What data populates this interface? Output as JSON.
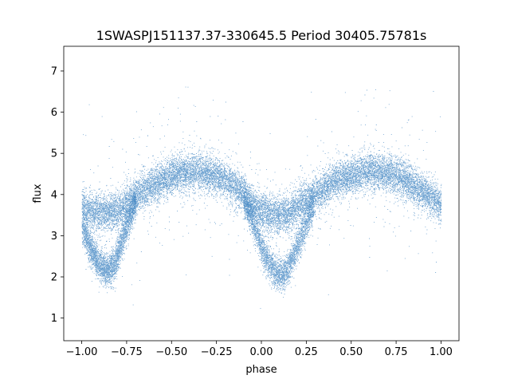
{
  "chart_data": {
    "type": "scatter",
    "title": "1SWASPJ151137.37-330645.5 Period 30405.75781s",
    "xlabel": "phase",
    "ylabel": "flux",
    "xlim": [
      -1.1,
      1.1
    ],
    "ylim": [
      0.45,
      7.6
    ],
    "x_ticks": [
      -1.0,
      -0.75,
      -0.5,
      -0.25,
      0.0,
      0.25,
      0.5,
      0.75,
      1.0
    ],
    "x_tick_labels": [
      "−1.00",
      "−0.75",
      "−0.50",
      "−0.25",
      "0.00",
      "0.25",
      "0.50",
      "0.75",
      "1.00"
    ],
    "y_ticks": [
      1,
      2,
      3,
      4,
      5,
      6,
      7
    ],
    "y_tick_labels": [
      "1",
      "2",
      "3",
      "4",
      "5",
      "6",
      "7"
    ],
    "grid": false,
    "point_color": "#3b82c0",
    "series": [
      {
        "phase_range": [
          -1.0,
          1.0
        ],
        "upper_branch_profile": {
          "x": [
            -1.0,
            -0.95,
            -0.9,
            -0.85,
            -0.8,
            -0.75,
            -0.7,
            -0.65,
            -0.6,
            -0.55,
            -0.5,
            -0.45,
            -0.4,
            -0.35,
            -0.3,
            -0.25,
            -0.2,
            -0.15,
            -0.1,
            -0.05,
            0.0,
            0.05,
            0.1,
            0.15,
            0.2,
            0.25,
            0.3,
            0.35,
            0.4,
            0.45,
            0.5,
            0.55,
            0.6,
            0.65,
            0.7,
            0.75,
            0.8,
            0.85,
            0.9,
            0.95,
            1.0
          ],
          "y": [
            3.7,
            3.6,
            3.55,
            3.55,
            3.6,
            3.75,
            3.95,
            4.1,
            4.25,
            4.35,
            4.45,
            4.5,
            4.55,
            4.55,
            4.5,
            4.45,
            4.35,
            4.2,
            4.0,
            3.75,
            3.6,
            3.5,
            3.5,
            3.55,
            3.7,
            3.85,
            4.0,
            4.15,
            4.3,
            4.4,
            4.45,
            4.5,
            4.55,
            4.55,
            4.5,
            4.45,
            4.35,
            4.2,
            4.05,
            3.9,
            3.75
          ]
        },
        "lower_branch_profile": {
          "x": [
            -1.0,
            -0.97,
            -0.94,
            -0.91,
            -0.88,
            -0.85,
            -0.82,
            -0.79,
            -0.76,
            -0.73,
            -0.7,
            -0.1,
            -0.07,
            -0.04,
            -0.01,
            0.02,
            0.05,
            0.08,
            0.11,
            0.14,
            0.17,
            0.2,
            0.23,
            0.26,
            0.29
          ],
          "y": [
            3.2,
            2.9,
            2.6,
            2.35,
            2.2,
            2.15,
            2.3,
            2.7,
            3.1,
            3.5,
            3.85,
            3.9,
            3.6,
            3.2,
            2.85,
            2.5,
            2.25,
            2.1,
            2.05,
            2.15,
            2.4,
            2.75,
            3.1,
            3.45,
            3.75
          ]
        },
        "scatter_sigma": 0.22,
        "outlier_range": [
          0.8,
          7.4
        ]
      }
    ]
  }
}
